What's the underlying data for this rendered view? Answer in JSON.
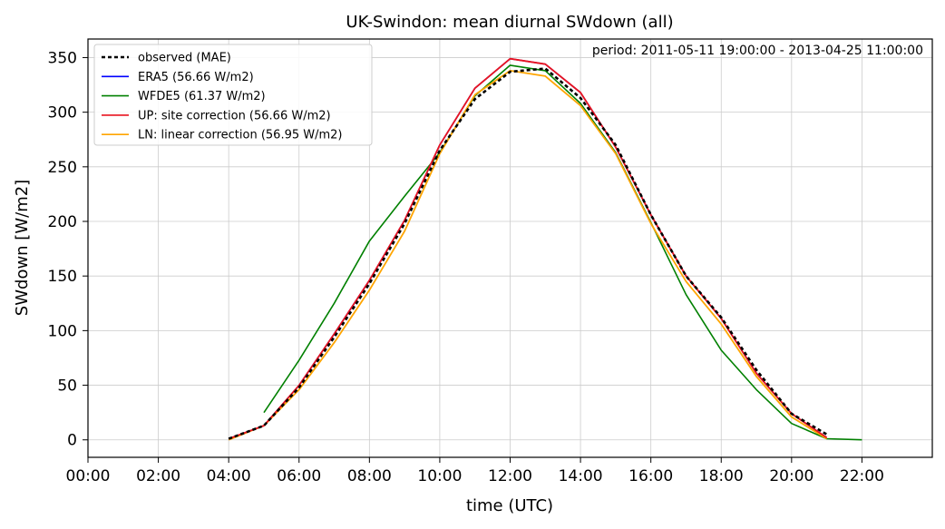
{
  "chart_data": {
    "type": "line",
    "title": "UK-Swindon: mean diurnal SWdown (all)",
    "annotation": "period: 2011-05-11 19:00:00 - 2013-04-25 11:00:00",
    "xlabel": "time (UTC)",
    "ylabel": "SWdown [W/m2]",
    "xlim": [
      0,
      24
    ],
    "ylim": [
      -16,
      367
    ],
    "xticks": [
      0,
      2,
      4,
      6,
      8,
      10,
      12,
      14,
      16,
      18,
      20,
      22
    ],
    "xtick_labels": [
      "00:00",
      "02:00",
      "04:00",
      "06:00",
      "08:00",
      "10:00",
      "12:00",
      "14:00",
      "16:00",
      "18:00",
      "20:00",
      "22:00"
    ],
    "yticks": [
      0,
      50,
      100,
      150,
      200,
      250,
      300,
      350
    ],
    "ytick_labels": [
      "0",
      "50",
      "100",
      "150",
      "200",
      "250",
      "300",
      "350"
    ],
    "grid": true,
    "legend_position": "top-left",
    "series": [
      {
        "name": "observed (MAE)",
        "color": "#000000",
        "dashed": true,
        "width": 2.6,
        "x": [
          4,
          5,
          6,
          7,
          8,
          9,
          10,
          11,
          12,
          13,
          14,
          15,
          16,
          17,
          18,
          19,
          20,
          21
        ],
        "y": [
          1,
          13,
          48,
          94,
          143,
          198,
          265,
          312,
          337,
          340,
          313,
          270,
          206,
          150,
          112,
          64,
          24,
          5
        ]
      },
      {
        "name": "ERA5 (56.66 W/m2)",
        "color": "#0000ff",
        "dashed": false,
        "width": 1.6,
        "x": [
          4,
          5,
          6,
          7,
          8,
          9,
          10,
          11,
          12,
          13,
          14,
          15,
          16,
          17,
          18,
          19,
          20,
          21
        ],
        "y": [
          1,
          13,
          50,
          97,
          146,
          201,
          270,
          322,
          349,
          344,
          318,
          268,
          206,
          150,
          111,
          61,
          24,
          2
        ]
      },
      {
        "name": "WFDE5 (61.37 W/m2)",
        "color": "#008000",
        "dashed": false,
        "width": 1.6,
        "x": [
          5,
          6,
          7,
          8,
          9,
          10,
          11,
          12,
          13,
          14,
          15,
          16,
          17,
          18,
          19,
          20,
          21,
          22
        ],
        "y": [
          25,
          73,
          125,
          182,
          223,
          263,
          315,
          343,
          338,
          308,
          263,
          199,
          133,
          82,
          46,
          15,
          1,
          0
        ]
      },
      {
        "name": "UP: site correction (56.66 W/m2)",
        "color": "#e8131f",
        "dashed": false,
        "width": 1.8,
        "x": [
          4,
          5,
          6,
          7,
          8,
          9,
          10,
          11,
          12,
          13,
          14,
          15,
          16,
          17,
          18,
          19,
          20,
          21
        ],
        "y": [
          1,
          13,
          50,
          97,
          146,
          201,
          270,
          322,
          349,
          344,
          318,
          268,
          206,
          150,
          111,
          61,
          24,
          2
        ]
      },
      {
        "name": "LN: linear correction (56.95 W/m2)",
        "color": "#ffa500",
        "dashed": false,
        "width": 1.8,
        "x": [
          4,
          5,
          6,
          7,
          8,
          9,
          10,
          11,
          12,
          13,
          14,
          15,
          16,
          17,
          18,
          19,
          20,
          21
        ],
        "y": [
          0,
          13,
          46,
          89,
          137,
          191,
          262,
          316,
          338,
          333,
          306,
          262,
          198,
          145,
          106,
          58,
          21,
          1
        ]
      }
    ]
  }
}
